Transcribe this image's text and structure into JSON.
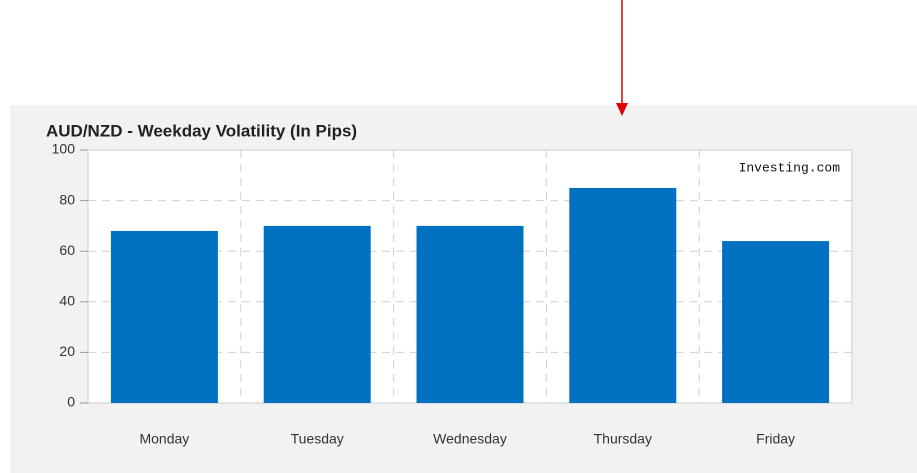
{
  "chart_data": {
    "type": "bar",
    "title": "AUD/NZD - Weekday Volatility (In Pips)",
    "annotation": "Investing.com",
    "categories": [
      "Monday",
      "Tuesday",
      "Wednesday",
      "Thursday",
      "Friday"
    ],
    "values": [
      68,
      70,
      70,
      85,
      64
    ],
    "color": "#0070c0",
    "ylim": [
      0,
      100
    ],
    "yticks": [
      0,
      20,
      40,
      60,
      80,
      100
    ],
    "grid": true
  }
}
